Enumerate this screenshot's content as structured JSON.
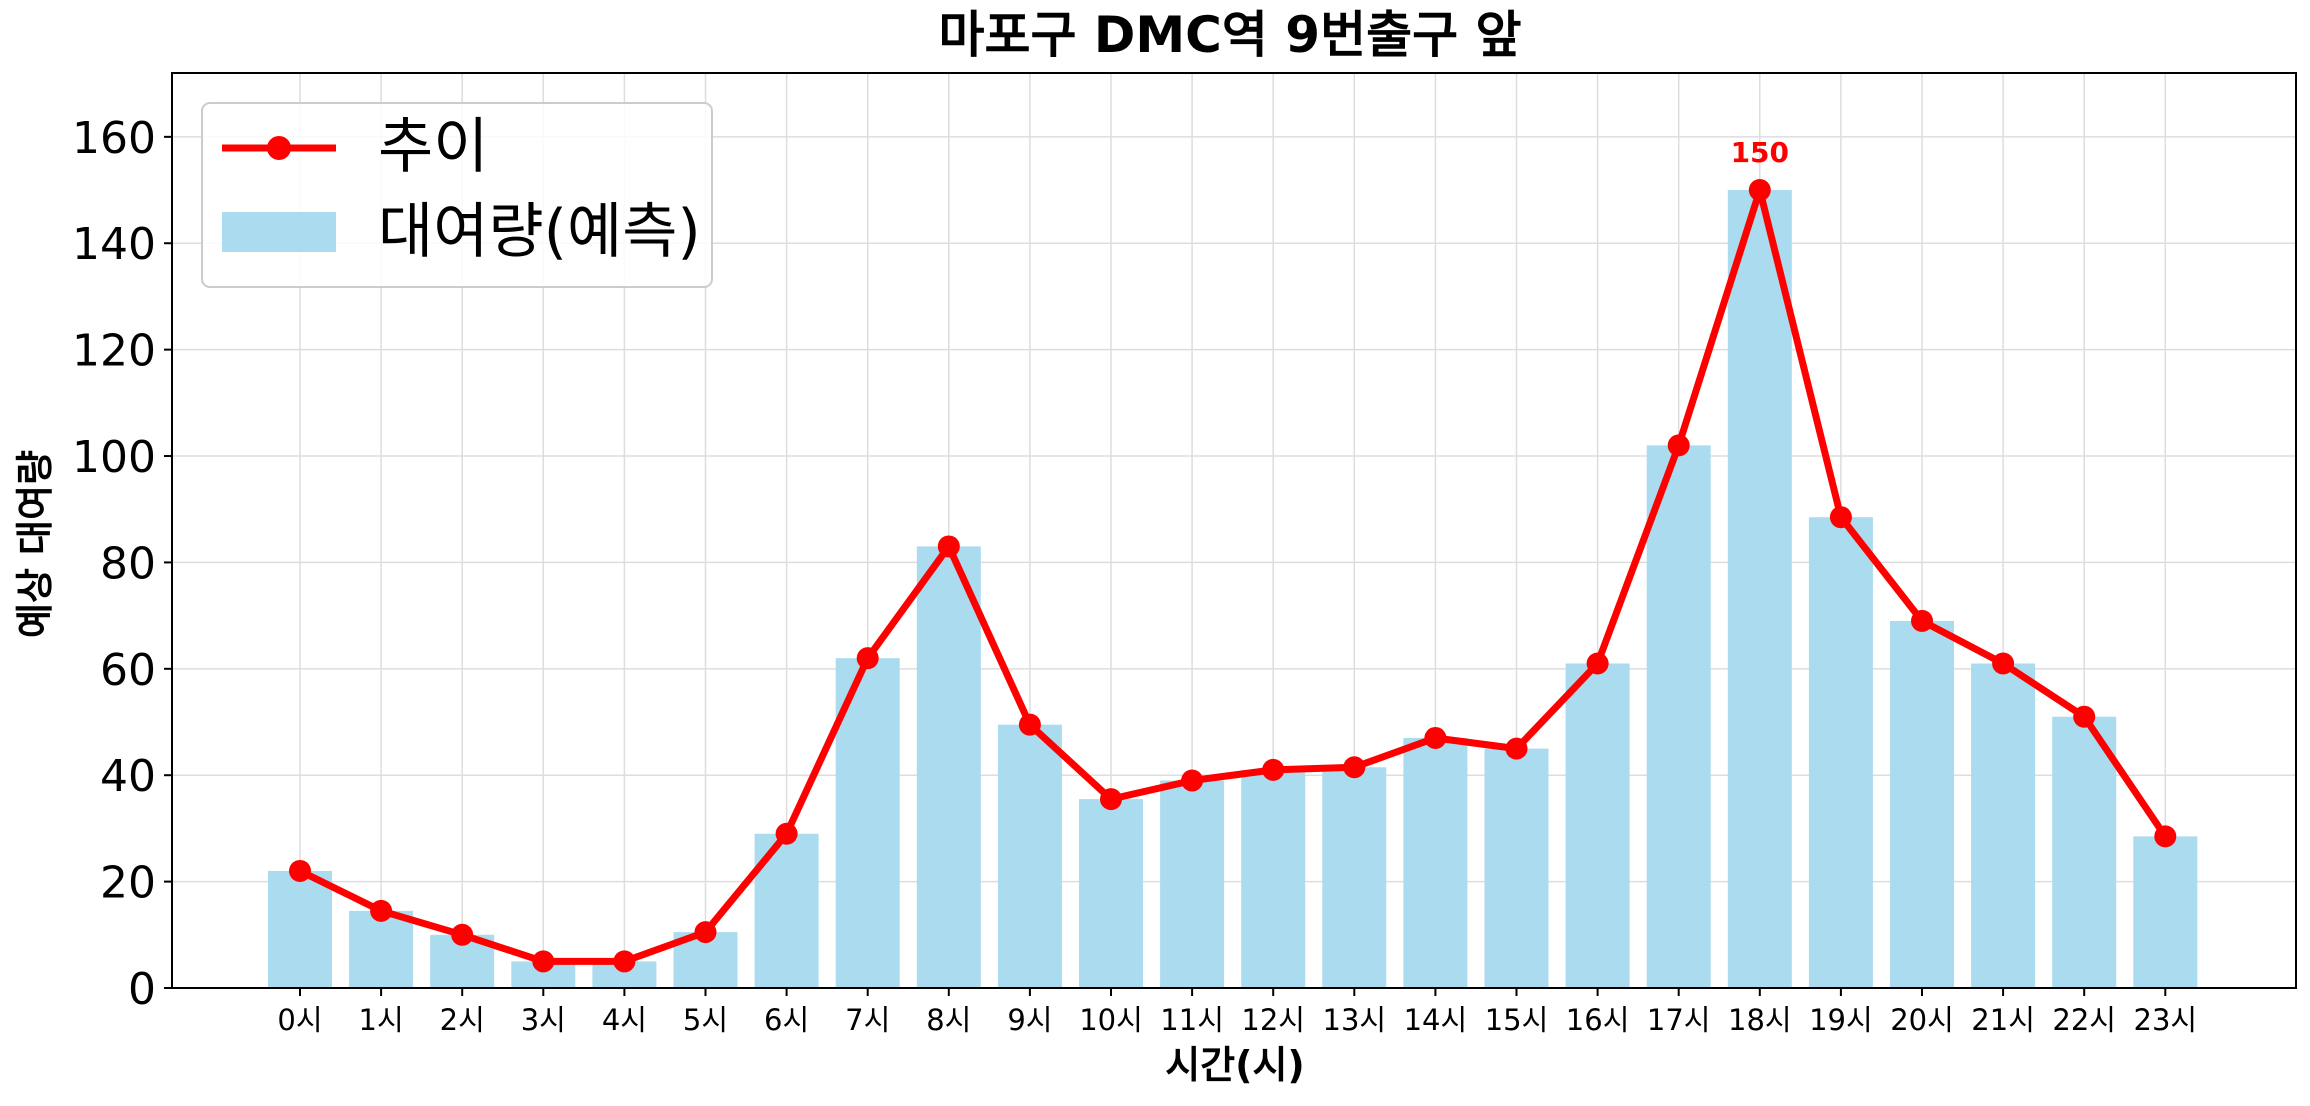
{
  "colors": {
    "bar": "#aadbee",
    "line": "#ff0000",
    "grid": "#dddddd",
    "axis": "#000000"
  },
  "chart_data": {
    "type": "bar",
    "title": "마포구 DMC역 9번출구 앞",
    "xlabel": "시간(시)",
    "ylabel": "예상 대여량",
    "ylim": [
      0,
      172
    ],
    "yticks": [
      0,
      20,
      40,
      60,
      80,
      100,
      120,
      140,
      160
    ],
    "grid": true,
    "legend_position": "top-left",
    "categories": [
      "0시",
      "1시",
      "2시",
      "3시",
      "4시",
      "5시",
      "6시",
      "7시",
      "8시",
      "9시",
      "10시",
      "11시",
      "12시",
      "13시",
      "14시",
      "15시",
      "16시",
      "17시",
      "18시",
      "19시",
      "20시",
      "21시",
      "22시",
      "23시"
    ],
    "series": [
      {
        "name": "대여량(예측)",
        "kind": "bar",
        "values": [
          22,
          14.5,
          10,
          5,
          5,
          10.5,
          29,
          62,
          83,
          49.5,
          35.5,
          39,
          41,
          41.5,
          47,
          45,
          61,
          102,
          150,
          88.5,
          69,
          61,
          51,
          28.5
        ]
      },
      {
        "name": "추이",
        "kind": "line",
        "values": [
          22,
          14.5,
          10,
          5,
          5,
          10.5,
          29,
          62,
          83,
          49.5,
          35.5,
          39,
          41,
          41.5,
          47,
          45,
          61,
          102,
          150,
          88.5,
          69,
          61,
          51,
          28.5
        ]
      }
    ],
    "annotations": [
      {
        "category": "18시",
        "value": 150,
        "text": "150"
      }
    ]
  }
}
